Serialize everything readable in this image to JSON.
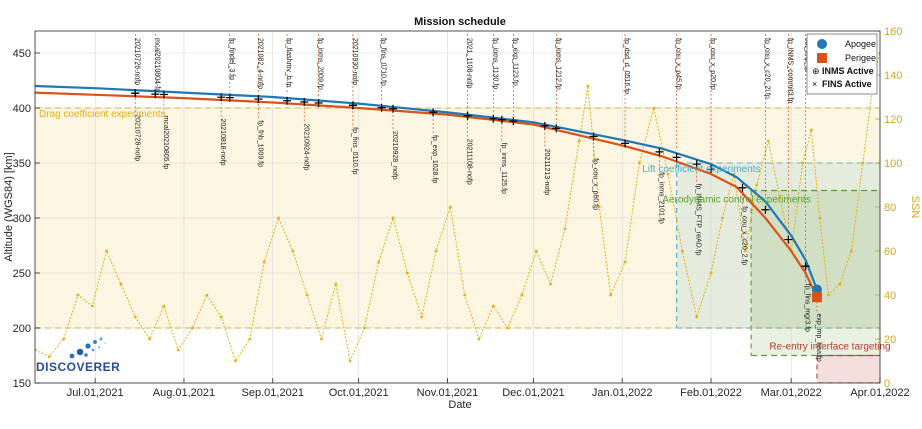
{
  "chart_data": {
    "type": "line",
    "title": "Mission schedule",
    "xlabel": "Date",
    "ylabel": "Altitude (WGS84) [km]",
    "y2label": "SSN",
    "xlim": [
      "2021-06-10",
      "2022-04-01"
    ],
    "ylim": [
      150,
      470
    ],
    "y2lim": [
      0,
      160
    ],
    "x_ticks": [
      "2021-07-01",
      "2021-08-01",
      "2021-09-01",
      "2021-10-01",
      "2021-11-01",
      "2021-12-01",
      "2022-01-01",
      "2022-02-01",
      "2022-03-01",
      "2022-04-01"
    ],
    "x_tick_labels": [
      "Jul.01,2021",
      "Aug.01,2021",
      "Sep.01,2021",
      "Oct.01,2021",
      "Nov.01,2021",
      "Dec.01,2021",
      "Jan.01,2022",
      "Feb.01,2022",
      "Mar.01,2022",
      "Apr.01,2022"
    ],
    "y_ticks": [
      150,
      200,
      250,
      300,
      350,
      400,
      450
    ],
    "y2_ticks": [
      0,
      20,
      40,
      60,
      80,
      100,
      120,
      140,
      160
    ],
    "grid": true,
    "legend_position": "top-right",
    "legend": [
      {
        "label": "Apogee",
        "color": "#1f77b4",
        "marker": "circle"
      },
      {
        "label": "Perigee",
        "color": "#d95319",
        "marker": "square"
      },
      {
        "label": "INMS Active",
        "marker": "plus-circle"
      },
      {
        "label": "FINS Active",
        "marker": "x"
      }
    ],
    "series": [
      {
        "name": "Apogee",
        "color": "#1f77b4",
        "points": [
          [
            "2021-06-10",
            420
          ],
          [
            "2021-07-01",
            418
          ],
          [
            "2021-08-01",
            414
          ],
          [
            "2021-09-01",
            410
          ],
          [
            "2021-10-01",
            404
          ],
          [
            "2021-11-01",
            396
          ],
          [
            "2021-12-01",
            387
          ],
          [
            "2022-01-01",
            371
          ],
          [
            "2022-01-15",
            363
          ],
          [
            "2022-02-01",
            349
          ],
          [
            "2022-02-10",
            337
          ],
          [
            "2022-02-20",
            315
          ],
          [
            "2022-03-01",
            284
          ],
          [
            "2022-03-06",
            262
          ],
          [
            "2022-03-10",
            235
          ]
        ]
      },
      {
        "name": "Perigee",
        "color": "#d95319",
        "points": [
          [
            "2021-06-10",
            414
          ],
          [
            "2021-07-01",
            412
          ],
          [
            "2021-08-01",
            409
          ],
          [
            "2021-09-01",
            405
          ],
          [
            "2021-10-01",
            400
          ],
          [
            "2021-11-01",
            394
          ],
          [
            "2021-12-01",
            385
          ],
          [
            "2022-01-01",
            366
          ],
          [
            "2022-01-15",
            356
          ],
          [
            "2022-02-01",
            340
          ],
          [
            "2022-02-10",
            328
          ],
          [
            "2022-02-20",
            300
          ],
          [
            "2022-03-01",
            270
          ],
          [
            "2022-03-06",
            250
          ],
          [
            "2022-03-10",
            228
          ]
        ]
      },
      {
        "name": "SSN",
        "color": "#e3b019",
        "axis": "right",
        "points": [
          [
            "2021-06-10",
            15
          ],
          [
            "2021-06-15",
            12
          ],
          [
            "2021-06-20",
            20
          ],
          [
            "2021-06-25",
            40
          ],
          [
            "2021-06-30",
            35
          ],
          [
            "2021-07-05",
            60
          ],
          [
            "2021-07-10",
            45
          ],
          [
            "2021-07-15",
            30
          ],
          [
            "2021-07-20",
            20
          ],
          [
            "2021-07-25",
            35
          ],
          [
            "2021-07-30",
            15
          ],
          [
            "2021-08-04",
            25
          ],
          [
            "2021-08-09",
            40
          ],
          [
            "2021-08-14",
            30
          ],
          [
            "2021-08-19",
            10
          ],
          [
            "2021-08-24",
            20
          ],
          [
            "2021-08-29",
            55
          ],
          [
            "2021-09-03",
            75
          ],
          [
            "2021-09-08",
            60
          ],
          [
            "2021-09-13",
            40
          ],
          [
            "2021-09-18",
            20
          ],
          [
            "2021-09-23",
            45
          ],
          [
            "2021-09-28",
            10
          ],
          [
            "2021-10-03",
            25
          ],
          [
            "2021-10-08",
            55
          ],
          [
            "2021-10-13",
            75
          ],
          [
            "2021-10-18",
            50
          ],
          [
            "2021-10-23",
            30
          ],
          [
            "2021-10-28",
            60
          ],
          [
            "2021-11-02",
            80
          ],
          [
            "2021-11-07",
            40
          ],
          [
            "2021-11-12",
            20
          ],
          [
            "2021-11-17",
            35
          ],
          [
            "2021-11-22",
            25
          ],
          [
            "2021-11-27",
            40
          ],
          [
            "2021-12-02",
            60
          ],
          [
            "2021-12-07",
            45
          ],
          [
            "2021-12-12",
            70
          ],
          [
            "2021-12-17",
            110
          ],
          [
            "2021-12-20",
            135
          ],
          [
            "2021-12-24",
            80
          ],
          [
            "2021-12-28",
            40
          ],
          [
            "2022-01-02",
            55
          ],
          [
            "2022-01-07",
            100
          ],
          [
            "2022-01-12",
            125
          ],
          [
            "2022-01-17",
            95
          ],
          [
            "2022-01-22",
            60
          ],
          [
            "2022-01-27",
            30
          ],
          [
            "2022-02-01",
            50
          ],
          [
            "2022-02-05",
            75
          ],
          [
            "2022-02-09",
            95
          ],
          [
            "2022-02-13",
            60
          ],
          [
            "2022-02-17",
            90
          ],
          [
            "2022-02-21",
            110
          ],
          [
            "2022-02-25",
            85
          ],
          [
            "2022-03-01",
            60
          ],
          [
            "2022-03-05",
            100
          ],
          [
            "2022-03-08",
            115
          ],
          [
            "2022-03-11",
            75
          ],
          [
            "2022-03-14",
            40
          ],
          [
            "2022-03-18",
            45
          ],
          [
            "2022-03-22",
            60
          ],
          [
            "2022-03-26",
            100
          ],
          [
            "2022-03-30",
            140
          ],
          [
            "2022-04-01",
            150
          ]
        ]
      }
    ],
    "regions": [
      {
        "label": "Drag coefficient experiments",
        "start": "2021-06-10",
        "end": "2022-04-01",
        "ymin": 200,
        "ymax": 400,
        "color": "#e3b019"
      },
      {
        "label": "Lift coefficient experiments",
        "start": "2022-01-20",
        "end": "2022-04-01",
        "ymin": 200,
        "ymax": 350,
        "color": "#4bacc6"
      },
      {
        "label": "Aerodynamic control experiments",
        "start": "2022-02-15",
        "end": "2022-04-01",
        "ymin": 175,
        "ymax": 325,
        "color": "#5a9e2f"
      },
      {
        "label": "Re-entry interface targeting",
        "start": "2022-03-10",
        "end": "2022-04-01",
        "ymin": 150,
        "ymax": 175,
        "color": "#c0392b"
      }
    ],
    "upper_annotations": [
      {
        "date": "2021-07-15",
        "text": "20210726-nofp"
      },
      {
        "date": "2021-07-22",
        "text": "mcal20210804-fp"
      },
      {
        "date": "2021-08-17",
        "text": "fp_findel_3.fp"
      },
      {
        "date": "2021-08-27",
        "text": "2021082_4-nofp"
      },
      {
        "date": "2021-09-06",
        "text": "fp_flashmv_b.fp"
      },
      {
        "date": "2021-09-17",
        "text": "fp_inms_2009.fp"
      },
      {
        "date": "2021-09-29",
        "text": "20210930-nofp"
      },
      {
        "date": "2021-10-09",
        "text": "fp_fins_0710.fp"
      },
      {
        "date": "2021-11-08",
        "text": "2021_1108-nofp"
      },
      {
        "date": "2021-11-17",
        "text": "fp_inms_1130.fp"
      },
      {
        "date": "2021-11-24",
        "text": "fp_exp_1123.fp"
      },
      {
        "date": "2021-12-09",
        "text": "fp_inms_1212.fp"
      },
      {
        "date": "2022-01-02",
        "text": "fp_dsd_d_0516.fp"
      },
      {
        "date": "2022-01-20",
        "text": "fp_cou_x_p45.fp"
      },
      {
        "date": "2022-02-01",
        "text": "fp_cou_x_p20.fp"
      },
      {
        "date": "2022-02-20",
        "text": "fp_cou_x_c20_2l.fp"
      },
      {
        "date": "2022-02-28",
        "text": "fp_INMS_commit3.fp"
      },
      {
        "date": "2022-03-06",
        "text": "cal_exp_fp"
      }
    ],
    "lower_annotations": [
      {
        "date": "2021-07-15",
        "text": "20210728-nofp"
      },
      {
        "date": "2021-07-25",
        "text": "mcal20210805.fp"
      },
      {
        "date": "2021-08-14",
        "text": "20210818-nofp"
      },
      {
        "date": "2021-08-27",
        "text": "fp_fnb_1009.fp"
      },
      {
        "date": "2021-09-12",
        "text": "20210924-nofp"
      },
      {
        "date": "2021-09-29",
        "text": "fp_fins_0110.fp"
      },
      {
        "date": "2021-10-13",
        "text": "20210928_nofp"
      },
      {
        "date": "2021-10-27",
        "text": "fp_exp_1028.fp"
      },
      {
        "date": "2021-11-08",
        "text": "20211108-nofp"
      },
      {
        "date": "2021-11-20",
        "text": "fp_inms_1125.fp"
      },
      {
        "date": "2021-12-05",
        "text": "20211213-nofp"
      },
      {
        "date": "2021-12-22",
        "text": "fp_cou_x_p60.fp"
      },
      {
        "date": "2022-01-14",
        "text": "fp_inms_2101.fp"
      },
      {
        "date": "2022-01-27",
        "text": "fp_INMS_FTP_reAD.fp"
      },
      {
        "date": "2022-02-12",
        "text": "fp_cou_x_c20_2.fp"
      },
      {
        "date": "2022-03-06",
        "text": "fp_fins_mgr3.fp"
      },
      {
        "date": "2022-03-10",
        "text": "exp_mp_bpa.fp"
      }
    ]
  },
  "logo": {
    "text": "DISCOVERER"
  }
}
